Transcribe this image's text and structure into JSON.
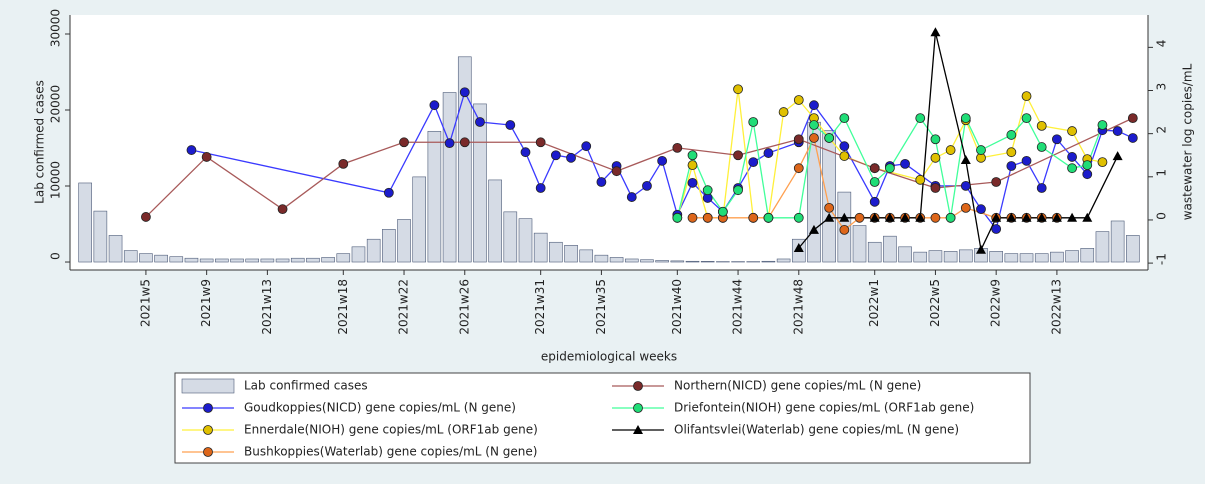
{
  "chart_data": {
    "type": "bar-line",
    "xlabel": "epidemiological weeks",
    "ylabel": "Lab confirmed cases",
    "y2label": "wastewater log copies/mL",
    "xlim": [
      0,
      71
    ],
    "xticks": [
      {
        "value": 5,
        "label": "2021w5"
      },
      {
        "value": 9,
        "label": "2021w9"
      },
      {
        "value": 13,
        "label": "2021w13"
      },
      {
        "value": 18,
        "label": "2021w18"
      },
      {
        "value": 22,
        "label": "2021w22"
      },
      {
        "value": 26,
        "label": "2021w26"
      },
      {
        "value": 31,
        "label": "2021w31"
      },
      {
        "value": 35,
        "label": "2021w35"
      },
      {
        "value": 40,
        "label": "2021w40"
      },
      {
        "value": 44,
        "label": "2021w44"
      },
      {
        "value": 48,
        "label": "2021w48"
      },
      {
        "value": 53,
        "label": "2022w1"
      },
      {
        "value": 57,
        "label": "2022w5"
      },
      {
        "value": 61,
        "label": "2022w9"
      },
      {
        "value": 65,
        "label": "2022w13"
      }
    ],
    "ylim": [
      -1050,
      32500
    ],
    "yticks": [
      0,
      10000,
      20000,
      30000
    ],
    "y2lim": [
      -1.16,
      4.75
    ],
    "y2ticks": [
      -1,
      0,
      1,
      2,
      3,
      4
    ],
    "bars": {
      "name": "Lab confirmed cases",
      "color": "#d5dbe5",
      "edge": "#4d5b78",
      "x": [
        1,
        2,
        3,
        4,
        5,
        6,
        7,
        8,
        9,
        10,
        11,
        12,
        13,
        14,
        15,
        16,
        17,
        18,
        19,
        20,
        21,
        22,
        23,
        24,
        25,
        26,
        27,
        28,
        29,
        30,
        31,
        32,
        33,
        34,
        35,
        36,
        37,
        38,
        39,
        40,
        41,
        42,
        43,
        44,
        45,
        46,
        47,
        48,
        49,
        50,
        51,
        52,
        53,
        54,
        55,
        56,
        57,
        58,
        59,
        60,
        61,
        62,
        63,
        64,
        65,
        66,
        67,
        68,
        69,
        70
      ],
      "values": [
        10400,
        6700,
        3500,
        1500,
        1100,
        900,
        700,
        500,
        400,
        400,
        400,
        400,
        400,
        400,
        500,
        500,
        600,
        1100,
        2000,
        3000,
        4300,
        5600,
        11200,
        17200,
        22300,
        27000,
        20800,
        10800,
        6600,
        5700,
        3800,
        2600,
        2200,
        1600,
        900,
        600,
        400,
        300,
        200,
        150,
        100,
        80,
        50,
        50,
        50,
        100,
        400,
        3000,
        18400,
        17300,
        9200,
        4800,
        2600,
        3400,
        2000,
        1300,
        1500,
        1400,
        1600,
        1800,
        1400,
        1100,
        1100,
        1100,
        1300,
        1500,
        1800,
        4000,
        5400,
        3500
      ]
    },
    "series": [
      {
        "name": "Goudkoppies(NICD) gene copies/mL (N gene)",
        "color": "#3a3aff",
        "marker_color": "#1c1ccc",
        "marker": "circle",
        "axis": "y2",
        "x": [
          8,
          21,
          24,
          25,
          26,
          27,
          29,
          30,
          31,
          32,
          33,
          34,
          35,
          36,
          37,
          38,
          39,
          40,
          41,
          42,
          43,
          44,
          45,
          46,
          48,
          49,
          51,
          53,
          54,
          55,
          57,
          59,
          60,
          61,
          62,
          63,
          64,
          65,
          66,
          67,
          68,
          69,
          70
        ],
        "values": [
          1.62,
          0.63,
          2.66,
          1.78,
          2.96,
          2.27,
          2.2,
          1.57,
          0.74,
          1.5,
          1.44,
          1.71,
          0.88,
          1.25,
          0.53,
          0.79,
          1.37,
          0.12,
          0.86,
          0.51,
          0.19,
          0.74,
          1.34,
          1.55,
          1.8,
          2.66,
          1.71,
          0.42,
          1.25,
          1.3,
          0.79,
          0.79,
          0.25,
          -0.21,
          1.25,
          1.37,
          0.74,
          1.87,
          1.46,
          1.06,
          2.08,
          2.06,
          1.9
        ]
      },
      {
        "name": "Ennerdale(NIOH) gene copies/mL (ORF1ab gene)",
        "color": "#fff03a",
        "marker_color": "#e0c000",
        "marker": "circle",
        "axis": "y2",
        "x": [
          40,
          41,
          42,
          43,
          44,
          45,
          46,
          47,
          48,
          49,
          50,
          51,
          53,
          56,
          57,
          58,
          59,
          60,
          62,
          63,
          64,
          66,
          67,
          68
        ],
        "values": [
          0.05,
          1.27,
          0.05,
          0.05,
          3.03,
          0.05,
          0.05,
          2.5,
          2.78,
          2.36,
          1.9,
          1.48,
          1.2,
          0.93,
          1.44,
          1.62,
          2.31,
          1.44,
          1.57,
          2.87,
          2.18,
          2.06,
          1.41,
          1.34
        ]
      },
      {
        "name": "Bushkoppies(Waterlab) gene copies/mL (N gene)",
        "color": "#ffa050",
        "marker_color": "#dd661a",
        "marker": "circle",
        "axis": "y2",
        "x": [
          41,
          42,
          43,
          45,
          46,
          48,
          49,
          50,
          51,
          52,
          53,
          54,
          55,
          56,
          57,
          58,
          59,
          61,
          62,
          63,
          64,
          65
        ],
        "values": [
          0.05,
          0.05,
          0.05,
          0.05,
          0.05,
          1.2,
          1.9,
          0.28,
          -0.23,
          0.05,
          0.05,
          0.05,
          0.05,
          0.05,
          0.05,
          0.05,
          0.28,
          0.05,
          0.05,
          0.05,
          0.05,
          0.05
        ]
      },
      {
        "name": "Northern(NICD) gene copies/mL (N gene)",
        "color": "#a85a5a",
        "marker_color": "#7a2a2a",
        "marker": "circle",
        "axis": "y2",
        "x": [
          5,
          9,
          14,
          18,
          22,
          26,
          31,
          36,
          40,
          44,
          48,
          53,
          57,
          61,
          70
        ],
        "values": [
          0.07,
          1.46,
          0.25,
          1.3,
          1.8,
          1.8,
          1.8,
          1.13,
          1.67,
          1.5,
          1.87,
          1.2,
          0.74,
          0.88,
          2.36
        ]
      },
      {
        "name": "Driefontein(NIOH) gene copies/mL (ORF1ab gene)",
        "color": "#40ff9a",
        "marker_color": "#20dd77",
        "marker": "circle",
        "axis": "y2",
        "x": [
          40,
          41,
          42,
          43,
          44,
          45,
          46,
          48,
          49,
          50,
          51,
          53,
          54,
          56,
          57,
          58,
          59,
          60,
          62,
          63,
          64,
          66,
          67,
          68
        ],
        "values": [
          0.05,
          1.5,
          0.69,
          0.19,
          0.69,
          2.27,
          0.05,
          0.05,
          2.2,
          1.9,
          2.36,
          0.88,
          1.2,
          2.36,
          1.87,
          0.05,
          2.36,
          1.62,
          1.97,
          2.36,
          1.69,
          1.2,
          1.27,
          2.2
        ]
      },
      {
        "name": "Olifantsvlei(Waterlab) gene copies/mL (N gene)",
        "color": "#000000",
        "marker_color": "#000000",
        "marker": "triangle",
        "axis": "y2",
        "x": [
          48,
          49,
          50,
          51,
          53,
          54,
          55,
          56,
          57,
          59,
          60,
          61,
          62,
          63,
          64,
          65,
          66,
          67,
          69
        ],
        "values": [
          -0.65,
          -0.23,
          0.05,
          0.05,
          0.05,
          0.05,
          0.05,
          0.05,
          4.35,
          1.39,
          -0.69,
          0.05,
          0.05,
          0.05,
          0.05,
          0.05,
          0.05,
          0.05,
          1.48
        ]
      }
    ]
  }
}
